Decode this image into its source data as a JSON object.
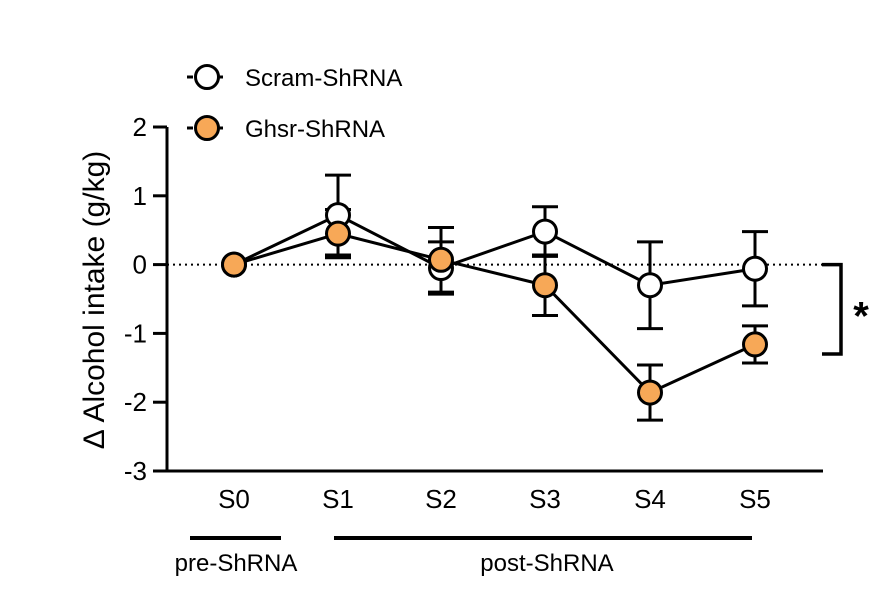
{
  "chart_data": {
    "type": "line",
    "title": "",
    "xlabel": "",
    "ylabel": "Δ Alcohol intake (g/kg)",
    "ylim": [
      -3,
      2
    ],
    "yticks": [
      2,
      1,
      0,
      -1,
      -2,
      -3
    ],
    "ytick_labels": [
      "2",
      "1",
      "0",
      "-1",
      "-2",
      "-3"
    ],
    "categories": [
      "S0",
      "S1",
      "S2",
      "S3",
      "S4",
      "S5"
    ],
    "reference_line": 0,
    "legend_position": "top-left",
    "series": [
      {
        "name": "Scram-ShRNA",
        "fill": "#ffffff",
        "values": [
          0,
          0.72,
          -0.05,
          0.48,
          -0.3,
          -0.06
        ],
        "error": [
          0,
          0.58,
          0.38,
          0.36,
          0.63,
          0.54
        ]
      },
      {
        "name": "Ghsr-ShRNA",
        "fill": "#F7A857",
        "values": [
          0,
          0.45,
          0.07,
          -0.3,
          -1.86,
          -1.16
        ],
        "error": [
          0,
          0.35,
          0.47,
          0.44,
          0.4,
          0.27
        ]
      }
    ],
    "groups": [
      {
        "label": "pre-ShRNA",
        "from": "S0",
        "to": "S0"
      },
      {
        "label": "post-ShRNA",
        "from": "S1",
        "to": "S5"
      }
    ],
    "significance": {
      "label": "*",
      "from": 0,
      "to": -1.3
    }
  },
  "colors": {
    "axis": "#000000",
    "scram_fill": "#ffffff",
    "ghsr_fill": "#F7A857",
    "marker_stroke": "#000000"
  }
}
